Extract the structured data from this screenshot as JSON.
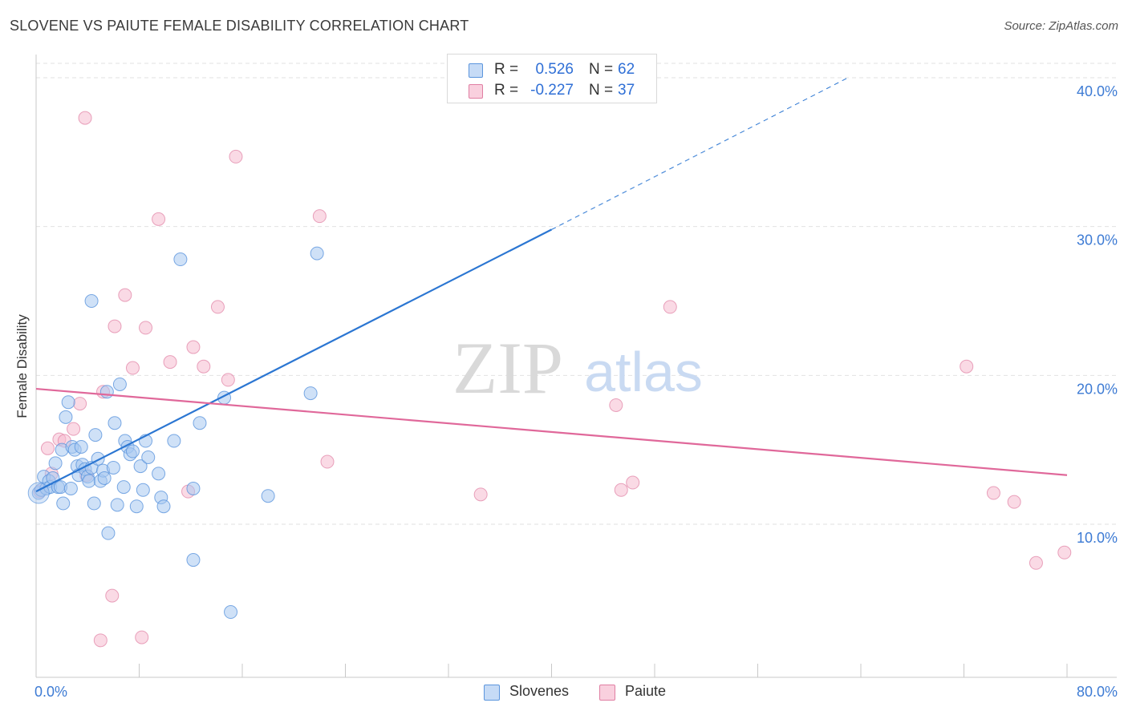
{
  "header": {
    "title": "SLOVENE VS PAIUTE FEMALE DISABILITY CORRELATION CHART",
    "source": "Source: ZipAtlas.com"
  },
  "watermark": {
    "zip": "ZIP",
    "atlas": "atlas"
  },
  "legend_top": {
    "rows": [
      {
        "r_label": "R =",
        "r_value": "0.526",
        "n_label": "N =",
        "n_value": "62"
      },
      {
        "r_label": "R =",
        "r_value": "-0.227",
        "n_label": "N =",
        "n_value": "37"
      }
    ]
  },
  "legend_bottom": {
    "items": [
      {
        "label": "Slovenes"
      },
      {
        "label": "Paiute"
      }
    ]
  },
  "colors": {
    "slovenes_fill": "#a8c8f0",
    "slovenes_stroke": "#5b95dd",
    "slovenes_line": "#2b76d2",
    "paiute_fill": "#f6bcd0",
    "paiute_stroke": "#e07fa3",
    "paiute_line": "#e0689a",
    "tick_label": "#3d7bd4",
    "grid": "#e2e2e2"
  },
  "chart_data": {
    "type": "scatter",
    "title": "SLOVENE VS PAIUTE FEMALE DISABILITY CORRELATION CHART",
    "xlabel": "",
    "ylabel": "Female Disability",
    "xlim": [
      0,
      80
    ],
    "ylim": [
      0,
      40
    ],
    "x_tick_labels": [
      "0.0%",
      "80.0%"
    ],
    "y_ticks": [
      10,
      20,
      30,
      40
    ],
    "y_tick_labels": [
      "10.0%",
      "20.0%",
      "30.0%",
      "40.0%"
    ],
    "grid": true,
    "legend_position": "top-center",
    "series": [
      {
        "name": "Slovenes",
        "r": 0.526,
        "n": 62,
        "trend": {
          "x0": 0,
          "y0": 12.2,
          "x1": 40,
          "y1": 29.8,
          "dash_to_x": 63,
          "dash_to_y": 40.0
        },
        "points": [
          [
            0.2,
            12.1
          ],
          [
            0.4,
            12.3
          ],
          [
            0.6,
            13.2
          ],
          [
            0.8,
            12.4
          ],
          [
            1.0,
            12.9
          ],
          [
            1.1,
            12.5
          ],
          [
            1.3,
            13.1
          ],
          [
            1.5,
            14.1
          ],
          [
            1.7,
            12.5
          ],
          [
            1.9,
            12.5
          ],
          [
            2.0,
            15.0
          ],
          [
            2.1,
            11.4
          ],
          [
            2.3,
            17.2
          ],
          [
            2.5,
            18.2
          ],
          [
            2.7,
            12.4
          ],
          [
            2.8,
            15.2
          ],
          [
            3.0,
            15.0
          ],
          [
            3.2,
            13.9
          ],
          [
            3.3,
            13.3
          ],
          [
            3.5,
            15.2
          ],
          [
            3.6,
            14.0
          ],
          [
            3.8,
            13.7
          ],
          [
            4.0,
            13.2
          ],
          [
            4.1,
            12.9
          ],
          [
            4.3,
            13.8
          ],
          [
            4.5,
            11.4
          ],
          [
            4.6,
            16.0
          ],
          [
            4.8,
            14.4
          ],
          [
            5.0,
            12.9
          ],
          [
            5.2,
            13.6
          ],
          [
            5.3,
            13.1
          ],
          [
            5.5,
            18.9
          ],
          [
            5.6,
            9.4
          ],
          [
            6.0,
            13.8
          ],
          [
            6.1,
            16.8
          ],
          [
            6.3,
            11.3
          ],
          [
            6.5,
            19.4
          ],
          [
            6.8,
            12.5
          ],
          [
            6.9,
            15.6
          ],
          [
            7.1,
            15.2
          ],
          [
            7.3,
            14.7
          ],
          [
            7.5,
            14.9
          ],
          [
            7.8,
            11.2
          ],
          [
            8.1,
            13.9
          ],
          [
            8.3,
            12.3
          ],
          [
            8.5,
            15.6
          ],
          [
            8.7,
            14.5
          ],
          [
            9.5,
            13.4
          ],
          [
            9.7,
            11.8
          ],
          [
            9.9,
            11.2
          ],
          [
            10.7,
            15.6
          ],
          [
            11.2,
            27.8
          ],
          [
            4.3,
            25.0
          ],
          [
            12.2,
            12.4
          ],
          [
            12.2,
            7.6
          ],
          [
            12.7,
            16.8
          ],
          [
            14.6,
            18.5
          ],
          [
            15.1,
            4.1
          ],
          [
            18.0,
            11.9
          ],
          [
            21.3,
            18.8
          ],
          [
            21.8,
            28.2
          ],
          [
            33.9,
            40.0
          ]
        ]
      },
      {
        "name": "Paiute",
        "r": -0.227,
        "n": 37,
        "trend": {
          "x0": 0,
          "y0": 19.1,
          "x1": 80,
          "y1": 13.3
        },
        "points": [
          [
            0.3,
            12.2
          ],
          [
            0.9,
            15.1
          ],
          [
            1.2,
            13.4
          ],
          [
            1.8,
            15.7
          ],
          [
            2.2,
            15.6
          ],
          [
            2.9,
            16.4
          ],
          [
            3.4,
            18.1
          ],
          [
            3.8,
            37.3
          ],
          [
            3.9,
            13.3
          ],
          [
            5.0,
            2.2
          ],
          [
            5.2,
            18.9
          ],
          [
            5.9,
            5.2
          ],
          [
            6.1,
            23.3
          ],
          [
            6.9,
            25.4
          ],
          [
            7.5,
            20.5
          ],
          [
            8.2,
            2.4
          ],
          [
            8.5,
            23.2
          ],
          [
            9.5,
            30.5
          ],
          [
            10.4,
            20.9
          ],
          [
            11.8,
            12.2
          ],
          [
            12.2,
            21.9
          ],
          [
            13.0,
            20.6
          ],
          [
            14.1,
            24.6
          ],
          [
            14.9,
            19.7
          ],
          [
            15.5,
            34.7
          ],
          [
            22.0,
            30.7
          ],
          [
            22.6,
            14.2
          ],
          [
            34.5,
            12.0
          ],
          [
            45.0,
            18.0
          ],
          [
            45.4,
            12.3
          ],
          [
            46.3,
            12.8
          ],
          [
            49.2,
            24.6
          ],
          [
            72.2,
            20.6
          ],
          [
            74.3,
            12.1
          ],
          [
            75.9,
            11.5
          ],
          [
            77.6,
            7.4
          ],
          [
            79.8,
            8.1
          ]
        ]
      }
    ]
  }
}
